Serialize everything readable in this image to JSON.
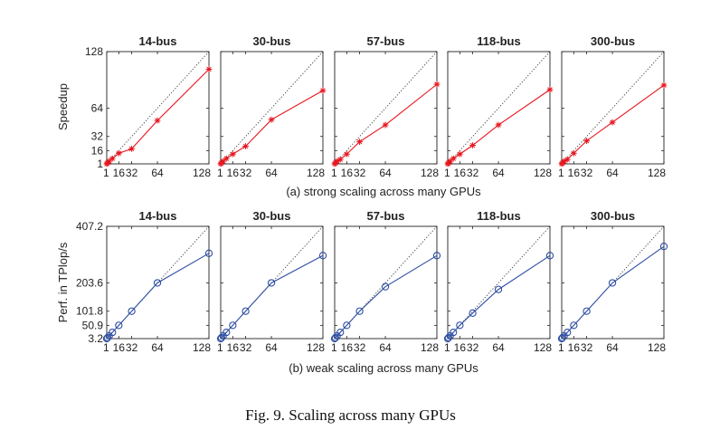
{
  "figure": {
    "caption": "Fig. 9.  Scaling across many GPUs",
    "rows": [
      {
        "subcaption": "(a) strong scaling across many GPUs",
        "ylabel": "Speedup"
      },
      {
        "subcaption": "(b) weak scaling across many GPUs",
        "ylabel": "Perf. in TPlop/s"
      }
    ]
  },
  "chart_data": [
    {
      "type": "line",
      "row": 0,
      "title": "14-bus",
      "x": [
        1,
        2,
        4,
        8,
        16,
        32,
        64,
        128
      ],
      "xticks": [
        "1",
        "16",
        "32",
        "64",
        "128"
      ],
      "yticks": [
        "1",
        "16",
        "32",
        "64",
        "128"
      ],
      "ylim": [
        1,
        128
      ],
      "xlim": [
        1,
        128
      ],
      "series": [
        {
          "values": [
            1,
            2,
            4,
            7,
            13,
            18,
            50,
            108
          ],
          "color": "#e8141c",
          "marker": "star"
        }
      ],
      "reference_line": "ideal (dotted diagonal)"
    },
    {
      "type": "line",
      "row": 0,
      "title": "30-bus",
      "x": [
        1,
        2,
        4,
        8,
        16,
        32,
        64,
        128
      ],
      "xticks": [
        "1",
        "16",
        "32",
        "64",
        "128"
      ],
      "yticks": [],
      "ylim": [
        1,
        128
      ],
      "xlim": [
        1,
        128
      ],
      "series": [
        {
          "values": [
            1,
            2,
            4,
            7,
            12,
            21,
            51,
            84
          ],
          "color": "#e8141c",
          "marker": "star"
        }
      ],
      "reference_line": "ideal (dotted diagonal)"
    },
    {
      "type": "line",
      "row": 0,
      "title": "57-bus",
      "x": [
        1,
        2,
        4,
        8,
        16,
        32,
        64,
        128
      ],
      "xticks": [
        "1",
        "16",
        "32",
        "64",
        "128"
      ],
      "yticks": [],
      "ylim": [
        1,
        128
      ],
      "xlim": [
        1,
        128
      ],
      "series": [
        {
          "values": [
            1,
            2,
            4,
            6,
            12,
            26,
            45,
            91
          ],
          "color": "#e8141c",
          "marker": "star"
        }
      ],
      "reference_line": "ideal (dotted diagonal)"
    },
    {
      "type": "line",
      "row": 0,
      "title": "118-bus",
      "x": [
        1,
        2,
        4,
        8,
        16,
        32,
        64,
        128
      ],
      "xticks": [
        "1",
        "16",
        "32",
        "64",
        "128"
      ],
      "yticks": [],
      "ylim": [
        1,
        128
      ],
      "xlim": [
        1,
        128
      ],
      "series": [
        {
          "values": [
            1,
            2,
            4,
            7,
            12,
            22,
            45,
            85
          ],
          "color": "#e8141c",
          "marker": "star"
        }
      ],
      "reference_line": "ideal (dotted diagonal)"
    },
    {
      "type": "line",
      "row": 0,
      "title": "300-bus",
      "x": [
        1,
        2,
        4,
        8,
        16,
        32,
        64,
        128
      ],
      "xticks": [
        "1",
        "16",
        "32",
        "64",
        "128"
      ],
      "yticks": [],
      "ylim": [
        1,
        128
      ],
      "xlim": [
        1,
        128
      ],
      "series": [
        {
          "values": [
            1,
            2,
            4,
            6,
            13,
            27,
            48,
            90
          ],
          "color": "#e8141c",
          "marker": "star"
        }
      ],
      "reference_line": "ideal (dotted diagonal)"
    },
    {
      "type": "line",
      "row": 1,
      "title": "14-bus",
      "x": [
        1,
        2,
        4,
        8,
        16,
        32,
        64,
        128
      ],
      "xticks": [
        "1",
        "16",
        "32",
        "64",
        "128"
      ],
      "yticks": [
        "3.2",
        "50.9",
        "101.8",
        "203.6",
        "407.2"
      ],
      "ylim": [
        3.2,
        407.2
      ],
      "xlim": [
        1,
        128
      ],
      "series": [
        {
          "values": [
            3.2,
            6.4,
            12.7,
            25.5,
            50.9,
            101.8,
            203.6,
            310
          ],
          "color": "#2e4fa3",
          "marker": "circle"
        }
      ],
      "reference_line": "ideal (dotted diagonal)"
    },
    {
      "type": "line",
      "row": 1,
      "title": "30-bus",
      "x": [
        1,
        2,
        4,
        8,
        16,
        32,
        64,
        128
      ],
      "xticks": [
        "1",
        "16",
        "32",
        "64",
        "128"
      ],
      "yticks": [],
      "ylim": [
        3.2,
        407.2
      ],
      "xlim": [
        1,
        128
      ],
      "series": [
        {
          "values": [
            3.2,
            6.4,
            12.7,
            25.5,
            50.9,
            101.8,
            203.6,
            302
          ],
          "color": "#2e4fa3",
          "marker": "circle"
        }
      ],
      "reference_line": "ideal (dotted diagonal)"
    },
    {
      "type": "line",
      "row": 1,
      "title": "57-bus",
      "x": [
        1,
        2,
        4,
        8,
        16,
        32,
        64,
        128
      ],
      "xticks": [
        "1",
        "16",
        "32",
        "64",
        "128"
      ],
      "yticks": [],
      "ylim": [
        3.2,
        407.2
      ],
      "xlim": [
        1,
        128
      ],
      "series": [
        {
          "values": [
            3.2,
            6.4,
            12.7,
            25.5,
            50.9,
            101.8,
            190,
            302
          ],
          "color": "#2e4fa3",
          "marker": "circle"
        }
      ],
      "reference_line": "ideal (dotted diagonal)"
    },
    {
      "type": "line",
      "row": 1,
      "title": "118-bus",
      "x": [
        1,
        2,
        4,
        8,
        16,
        32,
        64,
        128
      ],
      "xticks": [
        "1",
        "16",
        "32",
        "64",
        "128"
      ],
      "yticks": [],
      "ylim": [
        3.2,
        407.2
      ],
      "xlim": [
        1,
        128
      ],
      "series": [
        {
          "values": [
            3.2,
            6.4,
            12.7,
            25.5,
            50.9,
            95,
            180,
            302
          ],
          "color": "#2e4fa3",
          "marker": "circle"
        }
      ],
      "reference_line": "ideal (dotted diagonal)"
    },
    {
      "type": "line",
      "row": 1,
      "title": "300-bus",
      "x": [
        1,
        2,
        4,
        8,
        16,
        32,
        64,
        128
      ],
      "xticks": [
        "1",
        "16",
        "32",
        "64",
        "128"
      ],
      "yticks": [],
      "ylim": [
        3.2,
        407.2
      ],
      "xlim": [
        1,
        128
      ],
      "series": [
        {
          "values": [
            3.2,
            6.4,
            12.7,
            25.5,
            50.9,
            101.8,
            203.6,
            335
          ],
          "color": "#2e4fa3",
          "marker": "circle"
        }
      ],
      "reference_line": "ideal (dotted diagonal)"
    }
  ]
}
